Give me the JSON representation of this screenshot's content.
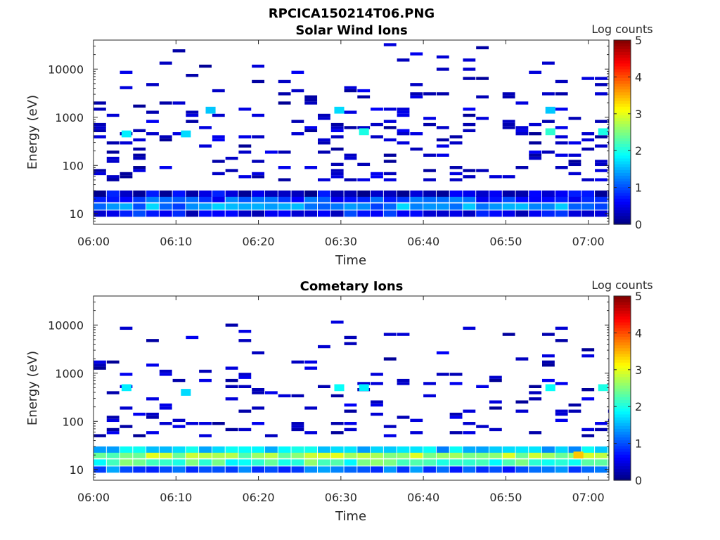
{
  "figure": {
    "title": "RPCICA150214T06.PNG"
  },
  "chart_data": [
    {
      "type": "heatmap",
      "title": "Solar Wind Ions",
      "xlabel": "Time",
      "ylabel": "Energy (eV)",
      "y_scale": "log",
      "x_ticks": [
        "06:00",
        "06:10",
        "06:20",
        "06:30",
        "06:40",
        "06:50",
        "07:00"
      ],
      "x_tick_minutes": [
        0,
        10,
        20,
        30,
        40,
        50,
        60
      ],
      "xlim_minutes": [
        0,
        62.5
      ],
      "y_ticks": [
        "10",
        "100",
        "1000",
        "10000"
      ],
      "y_tick_values": [
        10,
        100,
        1000,
        10000
      ],
      "ylim": [
        6,
        40000
      ],
      "colorbar": {
        "label": "Log counts",
        "range": [
          0,
          5
        ],
        "ticks": [
          "0",
          "1",
          "2",
          "3",
          "4",
          "5"
        ],
        "colormap": "jet"
      },
      "scan_start_minutes": [
        0,
        3.2,
        6.4,
        9.6,
        12.8,
        16,
        19.2,
        22.4,
        25.6,
        28.8,
        32,
        35.2,
        38.4,
        41.6,
        44.8,
        48,
        51.2,
        54.4,
        57.6,
        60.8
      ],
      "low_energy_band_eV": [
        {
          "energy": 10,
          "log_counts": 0.6
        },
        {
          "energy": 14,
          "log_counts": 1.3
        },
        {
          "energy": 20,
          "log_counts": 0.9
        },
        {
          "energy": 26,
          "log_counts": 0.4
        }
      ],
      "high_energy_points": [
        {
          "time_min": 3.4,
          "energy": 450,
          "log_counts": 1.8
        },
        {
          "time_min": 10.6,
          "energy": 450,
          "log_counts": 1.7
        },
        {
          "time_min": 13.6,
          "energy": 1400,
          "log_counts": 1.6
        },
        {
          "time_min": 29.2,
          "energy": 1400,
          "log_counts": 1.7
        },
        {
          "time_min": 32.2,
          "energy": 500,
          "log_counts": 2.0
        },
        {
          "time_min": 54.8,
          "energy": 1400,
          "log_counts": 1.6
        },
        {
          "time_min": 54.8,
          "energy": 500,
          "log_counts": 2.1
        },
        {
          "time_min": 61.2,
          "energy": 500,
          "log_counts": 2.0
        }
      ]
    },
    {
      "type": "heatmap",
      "title": "Cometary Ions",
      "xlabel": "Time",
      "ylabel": "Energy (eV)",
      "y_scale": "log",
      "x_ticks": [
        "06:00",
        "06:10",
        "06:20",
        "06:30",
        "06:40",
        "06:50",
        "07:00"
      ],
      "x_tick_minutes": [
        0,
        10,
        20,
        30,
        40,
        50,
        60
      ],
      "xlim_minutes": [
        0,
        62.5
      ],
      "y_ticks": [
        "10",
        "100",
        "1000",
        "10000"
      ],
      "y_tick_values": [
        10,
        100,
        1000,
        10000
      ],
      "ylim": [
        6,
        40000
      ],
      "colorbar": {
        "label": "Log counts",
        "range": [
          0,
          5
        ],
        "ticks": [
          "0",
          "1",
          "2",
          "3",
          "4",
          "5"
        ],
        "colormap": "jet"
      },
      "scan_start_minutes": [
        0,
        3.2,
        6.4,
        9.6,
        12.8,
        16,
        19.2,
        22.4,
        25.6,
        28.8,
        32,
        35.2,
        38.4,
        41.6,
        44.8,
        48,
        51.2,
        54.4,
        57.6,
        60.8
      ],
      "low_energy_band_eV": [
        {
          "energy": 10,
          "log_counts": 1.1
        },
        {
          "energy": 14,
          "log_counts": 2.2
        },
        {
          "energy": 20,
          "log_counts": 2.6
        },
        {
          "energy": 26,
          "log_counts": 1.6
        }
      ],
      "high_energy_points": [
        {
          "time_min": 3.4,
          "energy": 500,
          "log_counts": 1.8
        },
        {
          "time_min": 10.6,
          "energy": 400,
          "log_counts": 1.7
        },
        {
          "time_min": 29.2,
          "energy": 500,
          "log_counts": 1.9
        },
        {
          "time_min": 32.2,
          "energy": 500,
          "log_counts": 1.8
        },
        {
          "time_min": 54.8,
          "energy": 500,
          "log_counts": 1.9
        },
        {
          "time_min": 58.2,
          "energy": 20,
          "log_counts": 3.4
        },
        {
          "time_min": 61.2,
          "energy": 500,
          "log_counts": 2.0
        }
      ]
    }
  ]
}
